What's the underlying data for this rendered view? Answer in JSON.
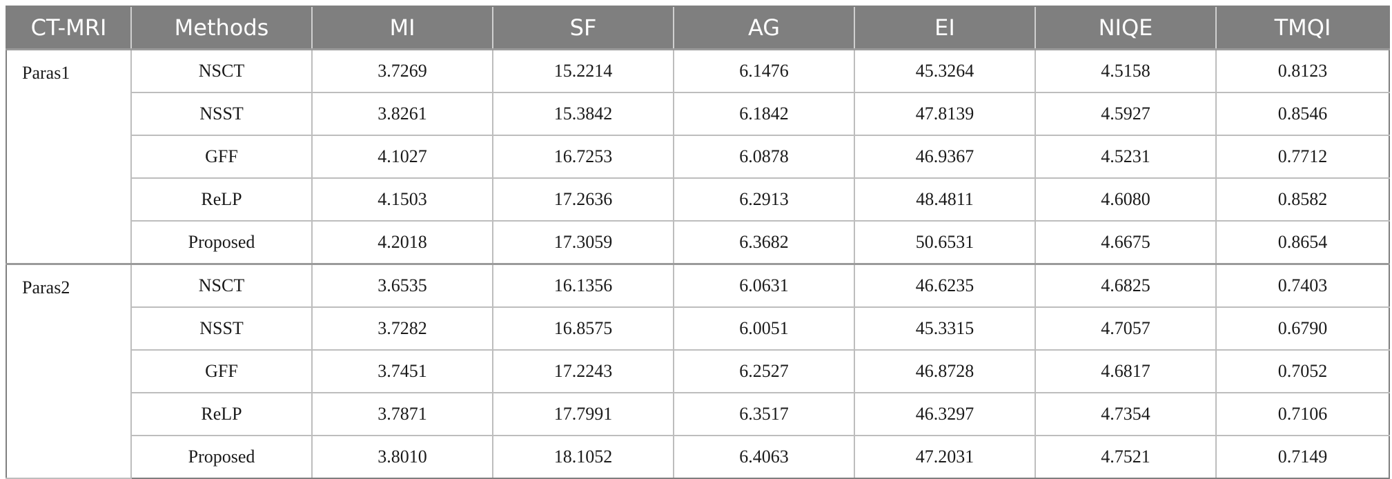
{
  "table": {
    "headers": [
      "CT-MRI",
      "Methods",
      "MI",
      "SF",
      "AG",
      "EI",
      "NIQE",
      "TMQI"
    ],
    "groups": [
      {
        "label": "Paras1",
        "rows": [
          [
            "NSCT",
            "3.7269",
            "15.2214",
            "6.1476",
            "45.3264",
            "4.5158",
            "0.8123"
          ],
          [
            "NSST",
            "3.8261",
            "15.3842",
            "6.1842",
            "47.8139",
            "4.5927",
            "0.8546"
          ],
          [
            "GFF",
            "4.1027",
            "16.7253",
            "6.0878",
            "46.9367",
            "4.5231",
            "0.7712"
          ],
          [
            "ReLP",
            "4.1503",
            "17.2636",
            "6.2913",
            "48.4811",
            "4.6080",
            "0.8582"
          ],
          [
            "Proposed",
            "4.2018",
            "17.3059",
            "6.3682",
            "50.6531",
            "4.6675",
            "0.8654"
          ]
        ]
      },
      {
        "label": "Paras2",
        "rows": [
          [
            "NSCT",
            "3.6535",
            "16.1356",
            "6.0631",
            "46.6235",
            "4.6825",
            "0.7403"
          ],
          [
            "NSST",
            "3.7282",
            "16.8575",
            "6.0051",
            "45.3315",
            "4.7057",
            "0.6790"
          ],
          [
            "GFF",
            "3.7451",
            "17.2243",
            "6.2527",
            "46.8728",
            "4.6817",
            "0.7052"
          ],
          [
            "ReLP",
            "3.7871",
            "17.7991",
            "6.3517",
            "46.3297",
            "4.7354",
            "0.7106"
          ],
          [
            "Proposed",
            "3.8010",
            "18.1052",
            "6.4063",
            "47.2031",
            "4.7521",
            "0.7149"
          ]
        ]
      }
    ]
  },
  "colors": {
    "header_background": "#7f7f7f",
    "header_text": "#ffffff",
    "grid_line": "#bdbdbd"
  }
}
